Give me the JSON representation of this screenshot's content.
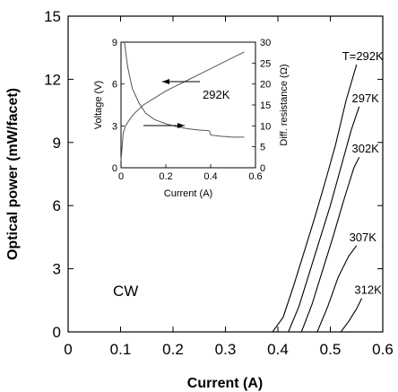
{
  "chart_data": [
    {
      "type": "line",
      "xlabel": "Current (A)",
      "ylabel": "Optical power (mW/facet)",
      "xlim": [
        0,
        0.6
      ],
      "ylim": [
        0,
        15
      ],
      "xticks": [
        "0",
        "0.1",
        "0.2",
        "0.3",
        "0.4",
        "0.5",
        "0.6"
      ],
      "yticks": [
        "0",
        "3",
        "6",
        "9",
        "12",
        "15"
      ],
      "annotation": "CW",
      "grid": false,
      "series": [
        {
          "name": "T=292K",
          "x": [
            0.33,
            0.39,
            0.41,
            0.43,
            0.45,
            0.47,
            0.49,
            0.51,
            0.53,
            0.55
          ],
          "y": [
            0,
            0,
            0.7,
            2.2,
            3.8,
            5.4,
            7.1,
            8.9,
            11.0,
            12.7
          ]
        },
        {
          "name": "297K",
          "x": [
            0.39,
            0.42,
            0.44,
            0.46,
            0.48,
            0.5,
            0.52,
            0.54,
            0.555
          ],
          "y": [
            0,
            0,
            1.2,
            2.8,
            4.4,
            6.0,
            7.8,
            9.6,
            10.7
          ]
        },
        {
          "name": "302K",
          "x": [
            0.42,
            0.445,
            0.465,
            0.485,
            0.505,
            0.525,
            0.545,
            0.555
          ],
          "y": [
            0,
            0,
            1.3,
            2.9,
            4.5,
            6.2,
            7.8,
            8.3
          ]
        },
        {
          "name": "307K",
          "x": [
            0.45,
            0.475,
            0.495,
            0.515,
            0.535,
            0.55
          ],
          "y": [
            0,
            0,
            1.2,
            2.6,
            3.6,
            4.1
          ]
        },
        {
          "name": "312K",
          "x": [
            0.49,
            0.52,
            0.535,
            0.55,
            0.56
          ],
          "y": [
            0,
            0,
            0.5,
            1.1,
            1.6
          ]
        }
      ]
    },
    {
      "type": "line",
      "xlabel": "Current (A)",
      "ylabel": "Voltage (V)",
      "y2label": "Diff. resistance (Ω)",
      "xlim": [
        0,
        0.6
      ],
      "ylim": [
        0,
        9
      ],
      "y2lim": [
        0,
        30
      ],
      "xticks": [
        "0",
        "0.2",
        "0.4",
        "0.6"
      ],
      "yticks": [
        "0",
        "3",
        "6",
        "9"
      ],
      "y2ticks": [
        "0",
        "5",
        "10",
        "15",
        "20",
        "25",
        "30"
      ],
      "annotation": "292K",
      "series": [
        {
          "axis": "left",
          "x": [
            0.0,
            0.01,
            0.02,
            0.04,
            0.06,
            0.1,
            0.15,
            0.2,
            0.25,
            0.3,
            0.35,
            0.4,
            0.45,
            0.5,
            0.55
          ],
          "y": [
            0.5,
            2.5,
            3.0,
            3.5,
            3.9,
            4.5,
            5.0,
            5.5,
            5.9,
            6.3,
            6.7,
            7.1,
            7.5,
            7.9,
            8.3
          ]
        },
        {
          "axis": "right",
          "x": [
            0.015,
            0.03,
            0.05,
            0.08,
            0.11,
            0.15,
            0.2,
            0.25,
            0.3,
            0.35,
            0.38,
            0.395,
            0.4,
            0.45,
            0.5,
            0.55
          ],
          "y": [
            30,
            24,
            19,
            15.5,
            13,
            11.5,
            10.5,
            9.8,
            9.3,
            9.0,
            8.9,
            8.8,
            7.8,
            7.5,
            7.3,
            7.3
          ]
        }
      ]
    }
  ]
}
